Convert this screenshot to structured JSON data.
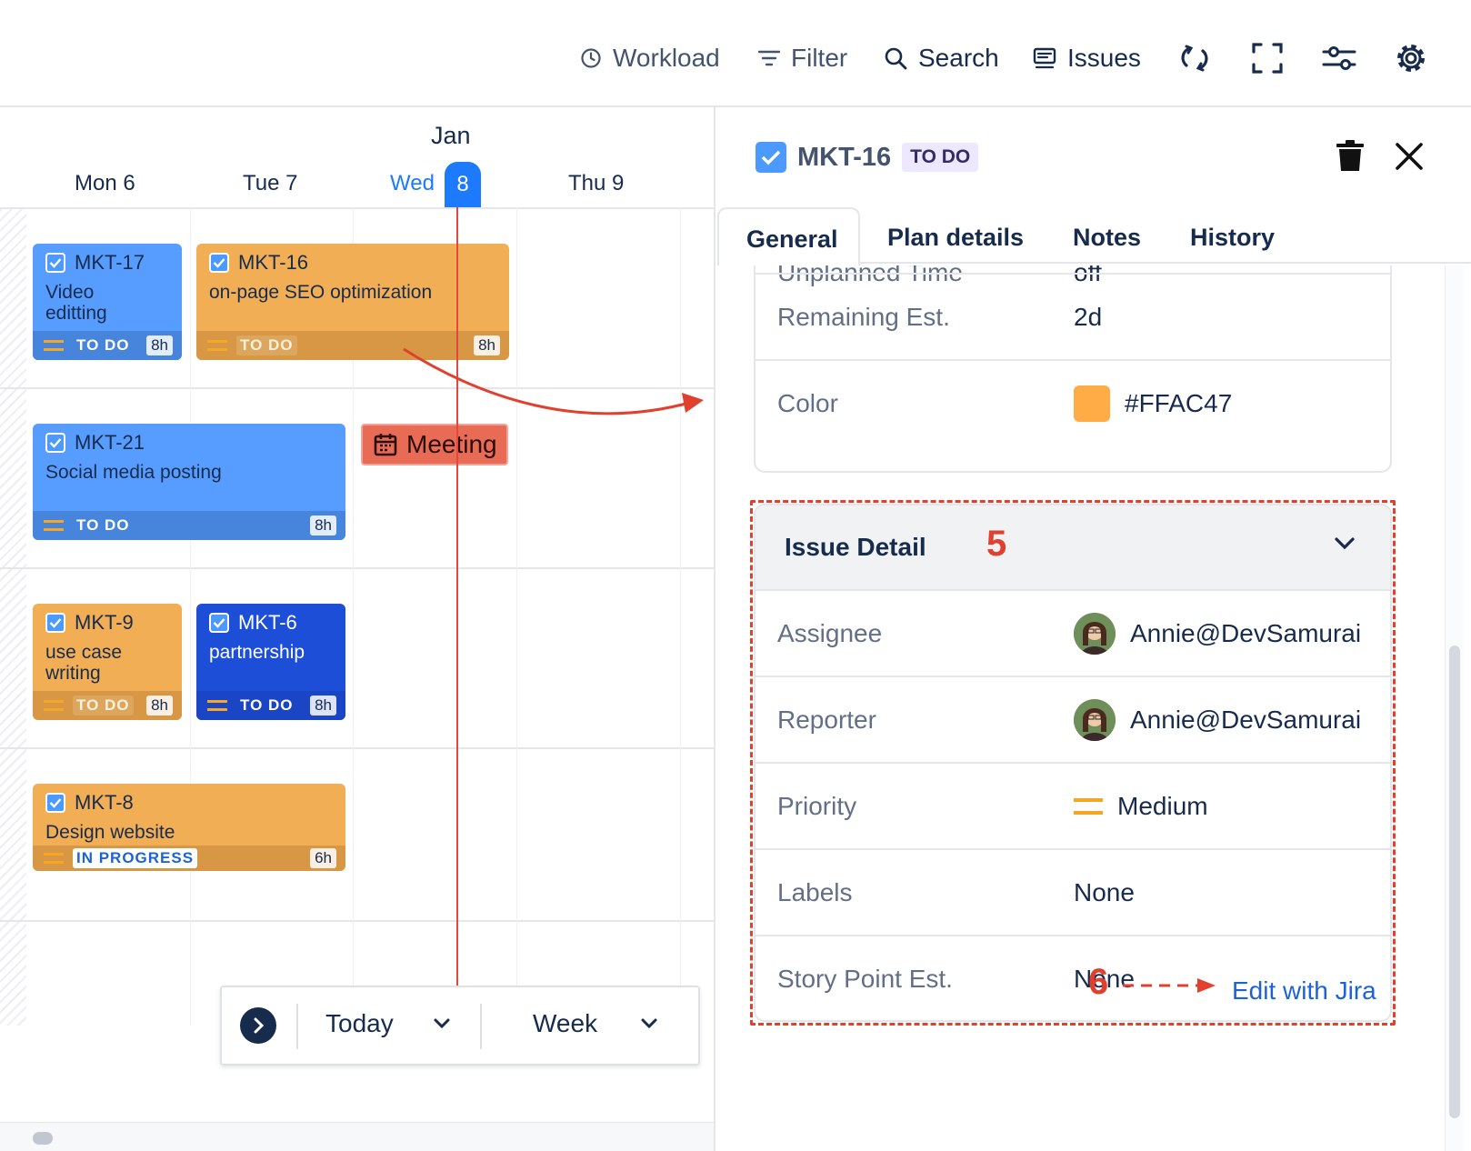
{
  "toolbar": {
    "workload": "Workload",
    "filter": "Filter",
    "search": "Search",
    "issues": "Issues"
  },
  "calendar": {
    "month": "Jan",
    "days": [
      {
        "name": "Mon 6"
      },
      {
        "name": "Tue 7"
      },
      {
        "name": "Wed"
      },
      {
        "name": "Thu 9"
      }
    ],
    "today_number": "8",
    "cards": [
      {
        "key": "MKT-17",
        "title": "Video editting",
        "status": "TO DO",
        "hours": "8h",
        "color": "#579dff"
      },
      {
        "key": "MKT-16",
        "title": "on-page SEO optimization",
        "status": "TO DO",
        "hours": "8h",
        "color": "#f2ae54"
      },
      {
        "key": "MKT-21",
        "title": "Social media posting",
        "status": "TO DO",
        "hours": "8h",
        "color": "#579dff"
      },
      {
        "key": "MKT-9",
        "title": "use case writing",
        "status": "TO DO",
        "hours": "8h",
        "color": "#f2ae54"
      },
      {
        "key": "MKT-6",
        "title": "partnership",
        "status": "TO DO",
        "hours": "8h",
        "color": "#1d4ed8"
      },
      {
        "key": "MKT-8",
        "title": "Design website",
        "status": "IN PROGRESS",
        "hours": "6h",
        "color": "#f2ae54"
      }
    ],
    "meeting": "Meeting",
    "nav": {
      "today": "Today",
      "range": "Week"
    }
  },
  "panel": {
    "issue_key": "MKT-16",
    "status": "TO DO",
    "tabs": [
      "General",
      "Plan details",
      "Notes",
      "History"
    ],
    "fields_top": [
      {
        "label": "Unplanned Time",
        "value": "off"
      },
      {
        "label": "Remaining Est.",
        "value": "2d"
      },
      {
        "label": "Color",
        "value": "#FFAC47"
      }
    ],
    "issue_detail": {
      "title": "Issue Detail",
      "fields": [
        {
          "label": "Assignee",
          "value": "Annie@DevSamurai"
        },
        {
          "label": "Reporter",
          "value": "Annie@DevSamurai"
        },
        {
          "label": "Priority",
          "value": "Medium"
        },
        {
          "label": "Labels",
          "value": "None"
        },
        {
          "label": "Story Point Est.",
          "value": "None"
        }
      ]
    },
    "edit_link": "Edit with Jira"
  },
  "annotations": {
    "step5": "5",
    "step6": "6"
  },
  "colors": {
    "accent": "#1d7afc",
    "annotation": "#e2402f",
    "issue_color": "#FFAC47"
  }
}
